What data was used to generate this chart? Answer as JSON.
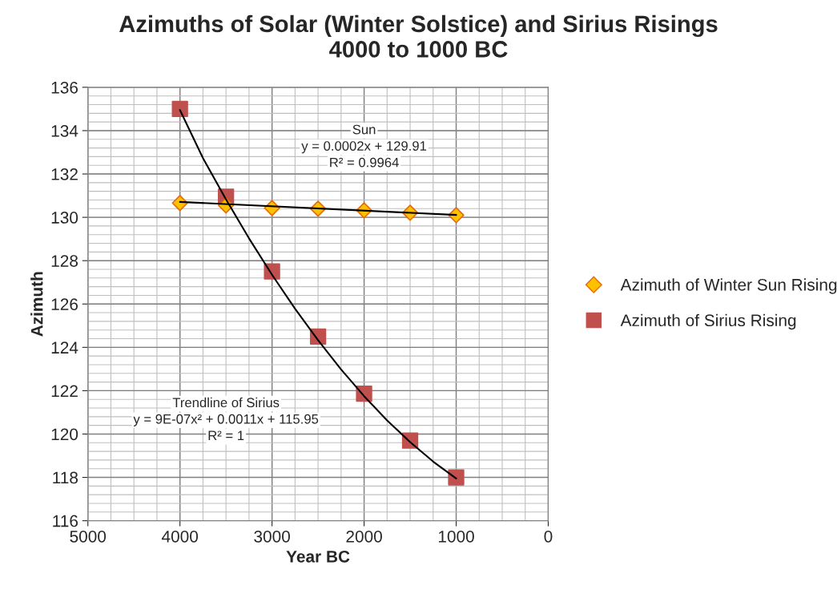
{
  "chart_data": {
    "type": "scatter",
    "title": "Azimuths of Solar (Winter Solstice) and Sirius Risings\n4000 to 1000 BC",
    "xlabel": "Year BC",
    "ylabel": "Azimuth",
    "x": [
      4000,
      3500,
      3000,
      2500,
      2000,
      1500,
      1000
    ],
    "series": [
      {
        "name": "Azimuth of Winter Sun Rising",
        "color": "#ffc000",
        "marker": "diamond",
        "values": [
          130.66,
          130.55,
          130.43,
          130.4,
          130.32,
          130.21,
          130.1
        ]
      },
      {
        "name": "Azimuth of Sirius Rising",
        "color": "#c0504d",
        "marker": "square",
        "values": [
          135.0,
          130.95,
          127.5,
          124.5,
          121.86,
          119.7,
          118.0
        ]
      },
      {
        "type": "line",
        "color": "#000000",
        "x": [
          4000,
          1000
        ],
        "values": [
          130.71,
          130.11
        ]
      },
      {
        "type": "line",
        "color": "#000000",
        "x": [
          4000,
          3750,
          3500,
          3250,
          3000,
          2750,
          2500,
          2250,
          2000,
          1750,
          1500,
          1250,
          1000
        ],
        "values": [
          134.95,
          132.73,
          130.83,
          129.03,
          127.35,
          125.78,
          124.33,
          122.98,
          121.75,
          120.63,
          119.63,
          118.73,
          117.95
        ]
      }
    ],
    "annotations": [
      "Sun",
      "y = 0.0002x + 129.91",
      "R² = 0.9964",
      "Trendline of Sirius",
      "y = 9E-07x² + 0.0011x + 115.95",
      "R² = 1"
    ],
    "xlim": [
      5000,
      0
    ],
    "xticks": [
      5000,
      4000,
      3000,
      2000,
      1000,
      0
    ],
    "ylim": [
      116,
      136
    ],
    "yticks": [
      116,
      118,
      120,
      122,
      124,
      126,
      128,
      130,
      132,
      134,
      136
    ],
    "grid": true,
    "legend": "right"
  }
}
